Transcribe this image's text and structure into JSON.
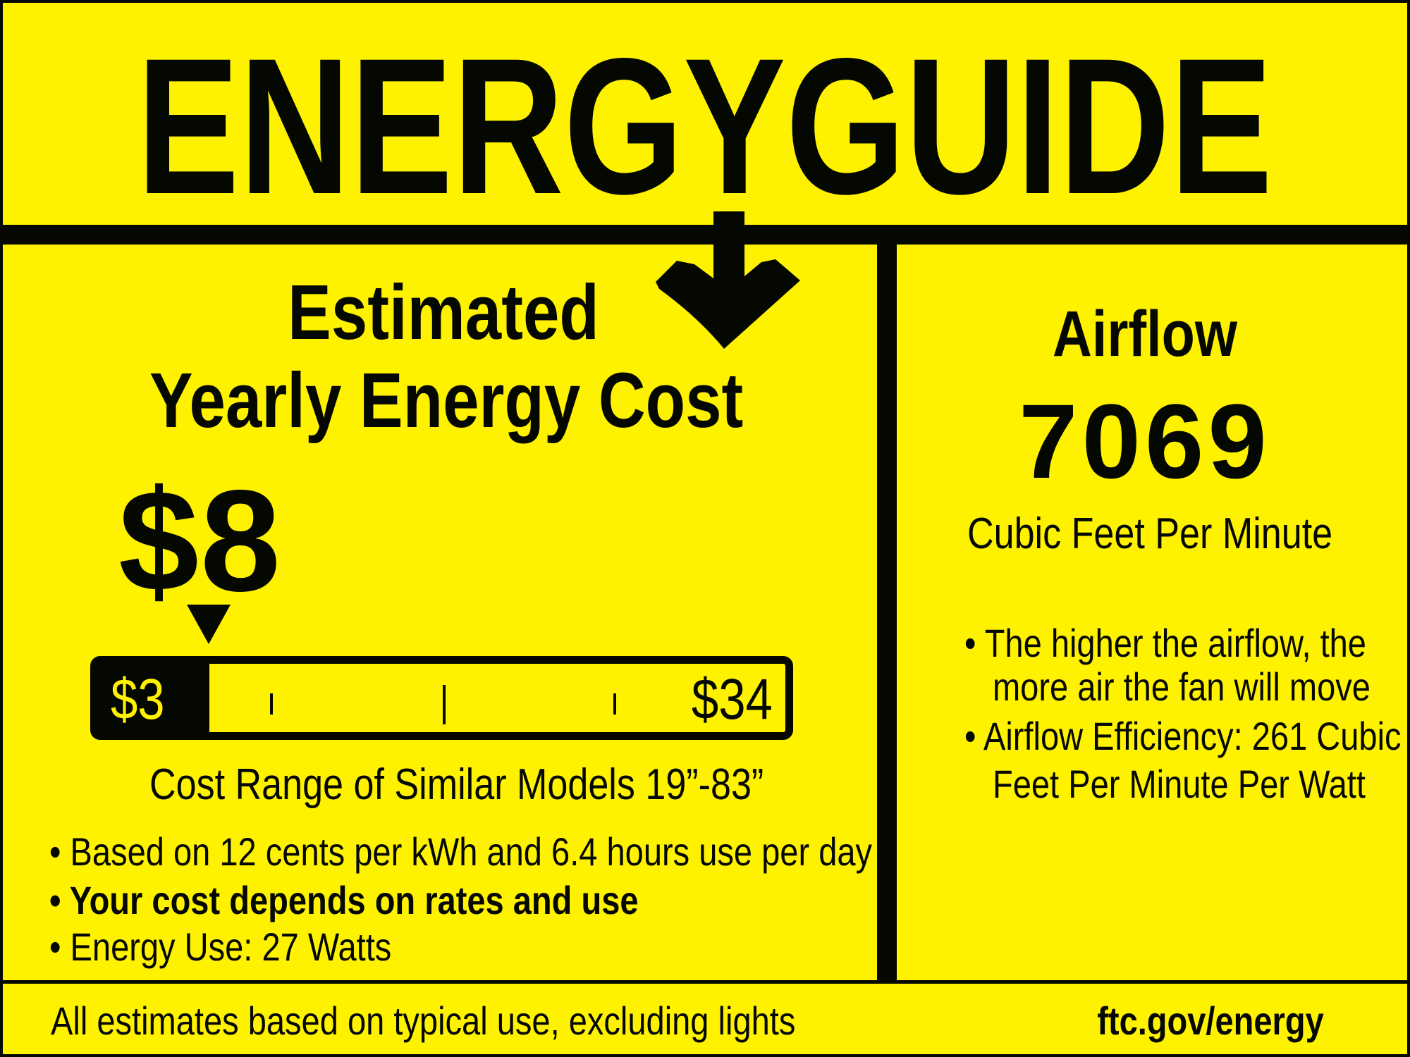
{
  "header": {
    "title": "ENERGYGUIDE"
  },
  "cost": {
    "heading_line1": "Estimated",
    "heading_line2": "Yearly Energy Cost",
    "value": "$8",
    "scale_min": "$3",
    "scale_max": "$34",
    "scale_value_fraction": 0.16,
    "range_text": "Cost Range of Similar Models 19”-83”",
    "bullets": [
      "• Based on 12 cents per kWh and 6.4 hours use per day",
      "• Your cost depends on rates and use",
      "• Energy Use: 27 Watts"
    ]
  },
  "airflow": {
    "heading": "Airflow",
    "value": "7069",
    "unit": "Cubic Feet Per Minute",
    "bullets": [
      "• The higher the airflow, the",
      "more air the fan will move",
      "• Airflow Efficiency: 261 Cubic",
      "Feet Per Minute Per Watt"
    ]
  },
  "footer": {
    "note": "All estimates based on typical use, excluding lights",
    "link": "ftc.gov/energy"
  },
  "colors": {
    "background": "#fff200",
    "ink": "#050800"
  }
}
